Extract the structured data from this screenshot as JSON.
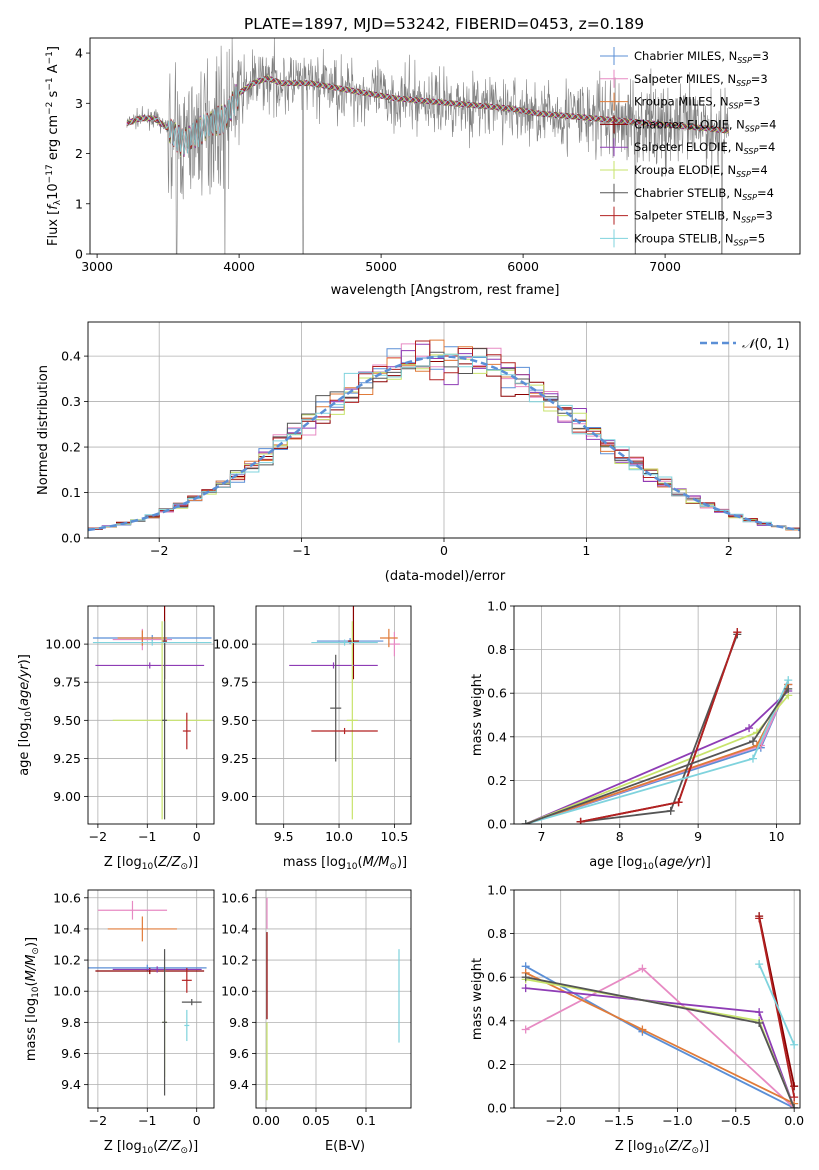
{
  "figure": {
    "title": "PLATE=1897, MJD=53242, FIBERID=0453, z=0.189"
  },
  "colors": {
    "Chabrier MILES": "#5b8fd6",
    "Salpeter MILES": "#e78ac3",
    "Kroupa MILES": "#e07b39",
    "Chabrier ELODIE": "#8b0000",
    "Salpeter ELODIE": "#8e3cb5",
    "Kroupa ELODIE": "#c7e36b",
    "Chabrier STELIB": "#555555",
    "Salpeter STELIB": "#b22222",
    "Kroupa STELIB": "#7fd3dd",
    "data": "#808080"
  },
  "chart_data": [
    {
      "panel": "spectrum",
      "type": "line",
      "xlabel": "wavelength [Angstrom, rest frame]",
      "ylabel": "Flux [f_λ10^-17 erg cm^-2 s^-1 A^-1]",
      "xlim": [
        2950,
        7950
      ],
      "ylim": [
        0,
        4.3
      ],
      "xticks": [
        3000,
        4000,
        5000,
        6000,
        7000
      ],
      "yticks": [
        0,
        1,
        2,
        3,
        4
      ],
      "legend_position": "right",
      "legend": [
        {
          "label": "Chabrier MILES, N",
          "sub": "SSP",
          "suffix": "=3",
          "key": "Chabrier MILES"
        },
        {
          "label": "Salpeter MILES, N",
          "sub": "SSP",
          "suffix": "=3",
          "key": "Salpeter MILES"
        },
        {
          "label": "Kroupa MILES, N",
          "sub": "SSP",
          "suffix": "=3",
          "key": "Kroupa MILES"
        },
        {
          "label": "Chabrier ELODIE, N",
          "sub": "SSP",
          "suffix": "=4",
          "key": "Chabrier ELODIE"
        },
        {
          "label": "Salpeter ELODIE, N",
          "sub": "SSP",
          "suffix": "=4",
          "key": "Salpeter ELODIE"
        },
        {
          "label": "Kroupa ELODIE, N",
          "sub": "SSP",
          "suffix": "=4",
          "key": "Kroupa ELODIE"
        },
        {
          "label": "Chabrier STELIB, N",
          "sub": "SSP",
          "suffix": "=4",
          "key": "Chabrier STELIB"
        },
        {
          "label": "Salpeter STELIB, N",
          "sub": "SSP",
          "suffix": "=3",
          "key": "Salpeter STELIB"
        },
        {
          "label": "Kroupa STELIB, N",
          "sub": "SSP",
          "suffix": "=5",
          "key": "Kroupa STELIB"
        }
      ],
      "continuum": [
        [
          3210,
          2.6
        ],
        [
          3300,
          2.7
        ],
        [
          3400,
          2.7
        ],
        [
          3500,
          2.5
        ],
        [
          3600,
          2.2
        ],
        [
          3700,
          2.4
        ],
        [
          3800,
          2.6
        ],
        [
          3900,
          2.7
        ],
        [
          4000,
          3.2
        ],
        [
          4100,
          3.4
        ],
        [
          4200,
          3.5
        ],
        [
          4300,
          3.4
        ],
        [
          4500,
          3.4
        ],
        [
          4700,
          3.3
        ],
        [
          4900,
          3.2
        ],
        [
          5100,
          3.1
        ],
        [
          5300,
          3.05
        ],
        [
          5500,
          3.0
        ],
        [
          5700,
          2.95
        ],
        [
          5900,
          2.9
        ],
        [
          6100,
          2.8
        ],
        [
          6300,
          2.75
        ],
        [
          6500,
          2.7
        ],
        [
          6700,
          2.65
        ],
        [
          6900,
          2.6
        ],
        [
          7100,
          2.55
        ],
        [
          7300,
          2.5
        ],
        [
          7450,
          2.45
        ]
      ],
      "model_end": 7450
    },
    {
      "panel": "residuals",
      "type": "histogram",
      "xlabel": "(data-model)/error",
      "ylabel": "Normed distribution",
      "xlim": [
        -2.5,
        2.5
      ],
      "ylim": [
        0,
        0.475
      ],
      "xticks": [
        -2,
        -1,
        0,
        1,
        2
      ],
      "yticks": [
        0.0,
        0.1,
        0.2,
        0.3,
        0.4
      ],
      "reference_curve": "N(0,1)",
      "legend_position": "top-right"
    },
    {
      "panel": "age_vs_Z",
      "type": "errorbar",
      "xlabel": "Z [log10(Z/Z⊙)]",
      "ylabel": "age  [log10(age/yr)]",
      "xlim": [
        -2.2,
        0.35
      ],
      "ylim": [
        8.82,
        10.25
      ],
      "xticks": [
        -2,
        -1,
        0
      ],
      "yticks": [
        9.0,
        9.25,
        9.5,
        9.75,
        10.0
      ],
      "points": [
        {
          "s": "Chabrier MILES",
          "x": -0.9,
          "xe": 1.2,
          "y": 10.04,
          "ye": 0.02
        },
        {
          "s": "Salpeter MILES",
          "x": -1.1,
          "xe": 0.6,
          "y": 10.03,
          "ye": 0.07
        },
        {
          "s": "Kroupa MILES",
          "x": -1.1,
          "xe": 0.5,
          "y": 10.04,
          "ye": 0.05
        },
        {
          "s": "Chabrier ELODIE",
          "x": -0.65,
          "xe": 0.05,
          "y": 10.02,
          "ye": 0.25
        },
        {
          "s": "Salpeter ELODIE",
          "x": -0.95,
          "xe": 1.1,
          "y": 9.86,
          "ye": 0.02
        },
        {
          "s": "Kroupa ELODIE",
          "x": -0.7,
          "xe": 1.0,
          "y": 9.5,
          "ye": 0.65
        },
        {
          "s": "Chabrier STELIB",
          "x": -0.65,
          "xe": 0.05,
          "y": 9.5,
          "ye": 0.65
        },
        {
          "s": "Salpeter STELIB",
          "x": -0.2,
          "xe": 0.08,
          "y": 9.43,
          "ye": 0.12
        },
        {
          "s": "Kroupa STELIB",
          "x": -0.9,
          "xe": 1.2,
          "y": 10.01,
          "ye": 0.02
        }
      ]
    },
    {
      "panel": "age_vs_mass",
      "type": "errorbar",
      "xlabel": "mass [log10(M/M⊙)]",
      "ylabel": "",
      "xlim": [
        9.25,
        10.65
      ],
      "ylim": [
        8.82,
        10.25
      ],
      "xticks": [
        9.5,
        10.0,
        10.5
      ],
      "yticks": [
        9.0,
        9.25,
        9.5,
        9.75,
        10.0
      ],
      "points": [
        {
          "s": "Chabrier MILES",
          "x": 10.1,
          "xe": 0.3,
          "y": 10.02,
          "ye": 0.02
        },
        {
          "s": "Salpeter MILES",
          "x": 10.5,
          "xe": 0.05,
          "y": 10.0,
          "ye": 0.08
        },
        {
          "s": "Kroupa MILES",
          "x": 10.45,
          "xe": 0.08,
          "y": 10.04,
          "ye": 0.06
        },
        {
          "s": "Chabrier ELODIE",
          "x": 10.13,
          "xe": 0.05,
          "y": 10.02,
          "ye": 0.25
        },
        {
          "s": "Salpeter ELODIE",
          "x": 9.95,
          "xe": 0.4,
          "y": 9.86,
          "ye": 0.02
        },
        {
          "s": "Kroupa ELODIE",
          "x": 10.12,
          "xe": 0.05,
          "y": 9.5,
          "ye": 0.65
        },
        {
          "s": "Chabrier STELIB",
          "x": 9.97,
          "xe": 0.05,
          "y": 9.58,
          "ye": 0.35
        },
        {
          "s": "Salpeter STELIB",
          "x": 10.05,
          "xe": 0.3,
          "y": 9.43,
          "ye": 0.02
        },
        {
          "s": "Kroupa STELIB",
          "x": 10.05,
          "xe": 0.3,
          "y": 10.01,
          "ye": 0.02
        }
      ]
    },
    {
      "panel": "massweight_vs_age",
      "type": "line",
      "xlabel": "age  [log10(age/yr)]",
      "ylabel": "mass weight",
      "xlim": [
        6.65,
        10.3
      ],
      "ylim": [
        0,
        1.0
      ],
      "xticks": [
        7,
        8,
        9,
        10
      ],
      "yticks": [
        0.0,
        0.2,
        0.4,
        0.6,
        0.8,
        1.0
      ],
      "series": [
        {
          "s": "Chabrier MILES",
          "x": [
            6.8,
            9.8,
            10.15
          ],
          "y": [
            0.0,
            0.35,
            0.64
          ]
        },
        {
          "s": "Salpeter MILES",
          "x": [
            6.8,
            9.8,
            10.15
          ],
          "y": [
            0.0,
            0.36,
            0.64
          ]
        },
        {
          "s": "Kroupa MILES",
          "x": [
            6.8,
            9.75,
            10.15
          ],
          "y": [
            0.0,
            0.36,
            0.64
          ]
        },
        {
          "s": "Chabrier ELODIE",
          "x": [
            7.5,
            8.75,
            9.5
          ],
          "y": [
            0.01,
            0.1,
            0.88
          ]
        },
        {
          "s": "Salpeter ELODIE",
          "x": [
            6.8,
            9.65,
            10.15
          ],
          "y": [
            0.0,
            0.44,
            0.61
          ]
        },
        {
          "s": "Kroupa ELODIE",
          "x": [
            6.8,
            9.75,
            10.15
          ],
          "y": [
            0.0,
            0.42,
            0.59
          ]
        },
        {
          "s": "Chabrier STELIB",
          "x": [
            7.5,
            8.65,
            9.5
          ],
          "y": [
            0.01,
            0.06,
            0.87
          ]
        },
        {
          "s": "Salpeter STELIB",
          "x": [
            7.5,
            8.75,
            9.5
          ],
          "y": [
            0.01,
            0.1,
            0.88
          ]
        },
        {
          "s": "Kroupa STELIB",
          "x": [
            6.8,
            9.7,
            10.15
          ],
          "y": [
            0.0,
            0.3,
            0.66
          ]
        },
        {
          "s": "Chabrier STELIB",
          "x": [
            6.8,
            9.7,
            10.15
          ],
          "y": [
            0.0,
            0.38,
            0.62
          ]
        }
      ]
    },
    {
      "panel": "mass_vs_Z",
      "type": "errorbar",
      "xlabel": "Z [log10(Z/Z⊙)]",
      "ylabel": "mass [log10(M/M⊙)]",
      "xlim": [
        -2.2,
        0.35
      ],
      "ylim": [
        9.25,
        10.65
      ],
      "xticks": [
        -2,
        -1,
        0
      ],
      "yticks": [
        9.4,
        9.6,
        9.8,
        10.0,
        10.2,
        10.4,
        10.6
      ],
      "points": [
        {
          "s": "Chabrier MILES",
          "x": -1.0,
          "xe": 1.2,
          "y": 10.15,
          "ye": 0.02
        },
        {
          "s": "Salpeter MILES",
          "x": -1.3,
          "xe": 0.7,
          "y": 10.52,
          "ye": 0.06
        },
        {
          "s": "Kroupa MILES",
          "x": -1.1,
          "xe": 0.7,
          "y": 10.4,
          "ye": 0.08
        },
        {
          "s": "Chabrier ELODIE",
          "x": -0.95,
          "xe": 1.1,
          "y": 10.13,
          "ye": 0.02
        },
        {
          "s": "Salpeter ELODIE",
          "x": -0.8,
          "xe": 0.9,
          "y": 10.14,
          "ye": 0.02
        },
        {
          "s": "Kroupa ELODIE",
          "x": -0.65,
          "xe": 0.05,
          "y": 9.8,
          "ye": 0.35
        },
        {
          "s": "Chabrier STELIB",
          "x": -0.65,
          "xe": 0.05,
          "y": 9.8,
          "ye": 0.47
        },
        {
          "s": "Salpeter STELIB",
          "x": -0.2,
          "xe": 0.1,
          "y": 10.07,
          "ye": 0.08
        },
        {
          "s": "Kroupa STELIB",
          "x": -0.2,
          "xe": 0.05,
          "y": 9.78,
          "ye": 0.1
        },
        {
          "s": "Chabrier STELIB",
          "x": -0.1,
          "xe": 0.2,
          "y": 9.93,
          "ye": 0.02
        }
      ]
    },
    {
      "panel": "mass_vs_ebv",
      "type": "errorbar",
      "xlabel": "E(B-V)",
      "ylabel": "",
      "xlim": [
        -0.01,
        0.145
      ],
      "ylim": [
        9.25,
        10.65
      ],
      "xticks": [
        0.0,
        0.05,
        0.1
      ],
      "yticks": [
        9.4,
        9.6,
        9.8,
        10.0,
        10.2,
        10.4,
        10.6
      ],
      "points": [
        {
          "s": "Salpeter MILES",
          "x": 0.001,
          "xe": 0,
          "y": 10.5,
          "ye": 0.1
        },
        {
          "s": "Chabrier ELODIE",
          "x": 0.001,
          "xe": 0,
          "y": 10.1,
          "ye": 0.28
        },
        {
          "s": "Kroupa ELODIE",
          "x": 0.001,
          "xe": 0,
          "y": 9.55,
          "ye": 0.25
        },
        {
          "s": "Kroupa STELIB",
          "x": 0.133,
          "xe": 0,
          "y": 9.97,
          "ye": 0.3
        }
      ]
    },
    {
      "panel": "massweight_vs_Z",
      "type": "line",
      "xlabel": "Z [log10(Z/Z⊙)]",
      "ylabel": "mass weight",
      "xlim": [
        -2.4,
        0.05
      ],
      "ylim": [
        0,
        1.0
      ],
      "xticks": [
        -2.0,
        -1.5,
        -1.0,
        -0.5,
        0.0
      ],
      "yticks": [
        0.0,
        0.2,
        0.4,
        0.6,
        0.8,
        1.0
      ],
      "series": [
        {
          "s": "Chabrier MILES",
          "x": [
            -2.3,
            -1.3,
            0.0
          ],
          "y": [
            0.65,
            0.35,
            0.0
          ]
        },
        {
          "s": "Salpeter MILES",
          "x": [
            -2.3,
            -1.3,
            0.0
          ],
          "y": [
            0.36,
            0.64,
            0.0
          ]
        },
        {
          "s": "Kroupa MILES",
          "x": [
            -2.3,
            -1.3,
            0.0
          ],
          "y": [
            0.62,
            0.36,
            0.02
          ]
        },
        {
          "s": "Chabrier ELODIE",
          "x": [
            -0.3,
            0.0
          ],
          "y": [
            0.88,
            0.1
          ]
        },
        {
          "s": "Salpeter ELODIE",
          "x": [
            -2.3,
            -0.3,
            0.0
          ],
          "y": [
            0.55,
            0.44,
            0.0
          ]
        },
        {
          "s": "Kroupa ELODIE",
          "x": [
            -2.3,
            -0.3,
            0.0
          ],
          "y": [
            0.59,
            0.4,
            0.0
          ]
        },
        {
          "s": "Chabrier STELIB",
          "x": [
            -2.3,
            -0.3,
            0.0
          ],
          "y": [
            0.6,
            0.39,
            0.0
          ]
        },
        {
          "s": "Salpeter STELIB",
          "x": [
            -0.3,
            0.0
          ],
          "y": [
            0.87,
            0.05
          ]
        },
        {
          "s": "Kroupa STELIB",
          "x": [
            -0.3,
            0.0
          ],
          "y": [
            0.66,
            0.29
          ]
        }
      ]
    }
  ]
}
